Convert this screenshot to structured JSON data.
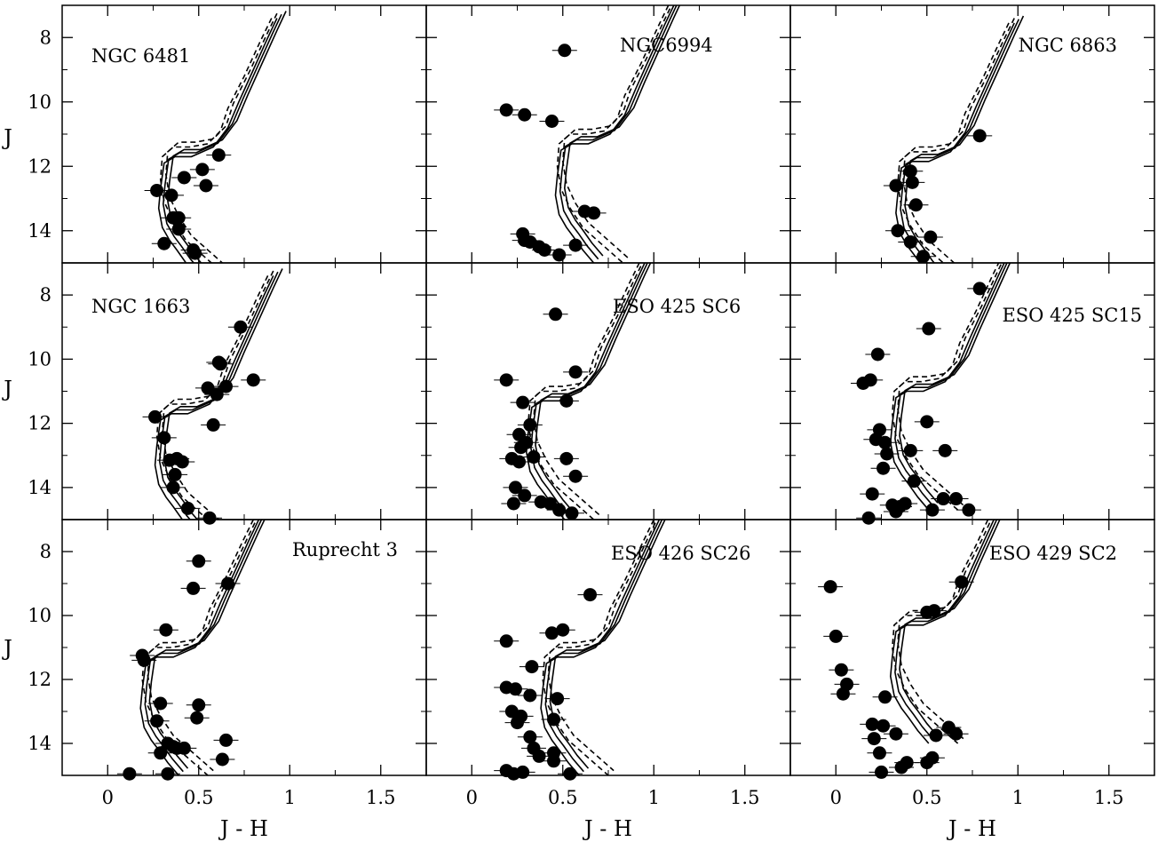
{
  "figure": {
    "axis_labels": {
      "x": "J - H",
      "y": "J"
    }
  },
  "chart_data": [
    {
      "type": "scatter",
      "title": "NGC 6481",
      "xlabel": "J - H",
      "ylabel": "J",
      "xlim": [
        -0.25,
        1.75
      ],
      "ylim": [
        15.0,
        7.0
      ],
      "x_ticks": [
        0,
        0.5,
        1,
        1.5
      ],
      "y_ticks": [
        8,
        10,
        12,
        14
      ],
      "series": [
        {
          "points": [
            [
              0.27,
              12.75
            ],
            [
              0.35,
              12.9
            ],
            [
              0.42,
              12.35
            ],
            [
              0.52,
              12.1
            ],
            [
              0.54,
              12.6
            ],
            [
              0.61,
              11.65
            ],
            [
              0.36,
              13.6
            ],
            [
              0.39,
              13.6
            ],
            [
              0.39,
              13.95
            ],
            [
              0.31,
              14.4
            ],
            [
              0.47,
              14.6
            ],
            [
              0.48,
              14.7
            ]
          ]
        }
      ]
    },
    {
      "type": "scatter",
      "title": "NGC6994",
      "xlabel": "J - H",
      "ylabel": "J",
      "xlim": [
        -0.25,
        1.75
      ],
      "ylim": [
        15.0,
        7.0
      ],
      "x_ticks": [
        0,
        0.5,
        1,
        1.5
      ],
      "y_ticks": [
        8,
        10,
        12,
        14
      ],
      "series": [
        {
          "points": [
            [
              0.51,
              8.4
            ],
            [
              0.19,
              10.25
            ],
            [
              0.29,
              10.4
            ],
            [
              0.44,
              10.6
            ],
            [
              0.62,
              13.4
            ],
            [
              0.67,
              13.45
            ],
            [
              0.28,
              14.1
            ],
            [
              0.29,
              14.3
            ],
            [
              0.32,
              14.35
            ],
            [
              0.37,
              14.5
            ],
            [
              0.4,
              14.6
            ],
            [
              0.48,
              14.75
            ],
            [
              0.57,
              14.45
            ]
          ]
        }
      ]
    },
    {
      "type": "scatter",
      "title": "NGC 6863",
      "xlabel": "J - H",
      "ylabel": "J",
      "xlim": [
        -0.25,
        1.75
      ],
      "ylim": [
        15.0,
        7.0
      ],
      "x_ticks": [
        0,
        0.5,
        1,
        1.5
      ],
      "y_ticks": [
        8,
        10,
        12,
        14
      ],
      "series": [
        {
          "points": [
            [
              0.79,
              11.05
            ],
            [
              0.41,
              12.15
            ],
            [
              0.42,
              12.5
            ],
            [
              0.33,
              12.6
            ],
            [
              0.44,
              13.2
            ],
            [
              0.34,
              14.0
            ],
            [
              0.41,
              14.35
            ],
            [
              0.52,
              14.2
            ],
            [
              0.48,
              14.8
            ]
          ]
        }
      ]
    },
    {
      "type": "scatter",
      "title": "NGC 1663",
      "xlabel": "J - H",
      "ylabel": "J",
      "xlim": [
        -0.25,
        1.75
      ],
      "ylim": [
        15.0,
        7.0
      ],
      "x_ticks": [
        0,
        0.5,
        1,
        1.5
      ],
      "y_ticks": [
        8,
        10,
        12,
        14
      ],
      "series": [
        {
          "points": [
            [
              0.73,
              9.0
            ],
            [
              0.61,
              10.1
            ],
            [
              0.62,
              10.15
            ],
            [
              0.55,
              10.9
            ],
            [
              0.6,
              11.1
            ],
            [
              0.65,
              10.85
            ],
            [
              0.8,
              10.65
            ],
            [
              0.26,
              11.8
            ],
            [
              0.58,
              12.05
            ],
            [
              0.31,
              12.45
            ],
            [
              0.34,
              13.15
            ],
            [
              0.38,
              13.1
            ],
            [
              0.41,
              13.2
            ],
            [
              0.37,
              13.6
            ],
            [
              0.36,
              14.0
            ],
            [
              0.44,
              14.65
            ],
            [
              0.56,
              14.95
            ]
          ]
        }
      ]
    },
    {
      "type": "scatter",
      "title": "ESO 425 SC6",
      "xlabel": "J - H",
      "ylabel": "J",
      "xlim": [
        -0.25,
        1.75
      ],
      "ylim": [
        15.0,
        7.0
      ],
      "x_ticks": [
        0,
        0.5,
        1,
        1.5
      ],
      "y_ticks": [
        8,
        10,
        12,
        14
      ],
      "series": [
        {
          "points": [
            [
              0.46,
              8.6
            ],
            [
              0.57,
              10.4
            ],
            [
              0.19,
              10.65
            ],
            [
              0.28,
              11.35
            ],
            [
              0.52,
              11.3
            ],
            [
              0.32,
              12.05
            ],
            [
              0.26,
              12.35
            ],
            [
              0.27,
              12.75
            ],
            [
              0.3,
              12.6
            ],
            [
              0.22,
              13.1
            ],
            [
              0.26,
              13.2
            ],
            [
              0.34,
              13.05
            ],
            [
              0.52,
              13.1
            ],
            [
              0.57,
              13.65
            ],
            [
              0.24,
              14.0
            ],
            [
              0.29,
              14.25
            ],
            [
              0.38,
              14.45
            ],
            [
              0.43,
              14.5
            ],
            [
              0.48,
              14.7
            ],
            [
              0.55,
              14.8
            ],
            [
              0.23,
              14.5
            ]
          ]
        }
      ]
    },
    {
      "type": "scatter",
      "title": "ESO 425 SC15",
      "xlabel": "J - H",
      "ylabel": "J",
      "xlim": [
        -0.25,
        1.75
      ],
      "ylim": [
        15.0,
        7.0
      ],
      "x_ticks": [
        0,
        0.5,
        1,
        1.5
      ],
      "y_ticks": [
        8,
        10,
        12,
        14
      ],
      "series": [
        {
          "points": [
            [
              0.79,
              7.8
            ],
            [
              0.51,
              9.05
            ],
            [
              0.23,
              9.85
            ],
            [
              0.15,
              10.75
            ],
            [
              0.19,
              10.65
            ],
            [
              0.24,
              12.2
            ],
            [
              0.22,
              12.5
            ],
            [
              0.27,
              12.6
            ],
            [
              0.28,
              12.95
            ],
            [
              0.26,
              13.4
            ],
            [
              0.41,
              12.85
            ],
            [
              0.5,
              11.95
            ],
            [
              0.6,
              12.85
            ],
            [
              0.43,
              13.8
            ],
            [
              0.2,
              14.2
            ],
            [
              0.31,
              14.55
            ],
            [
              0.35,
              14.6
            ],
            [
              0.38,
              14.5
            ],
            [
              0.33,
              14.75
            ],
            [
              0.53,
              14.7
            ],
            [
              0.59,
              14.35
            ],
            [
              0.66,
              14.35
            ],
            [
              0.73,
              14.7
            ],
            [
              0.18,
              14.95
            ]
          ]
        }
      ]
    },
    {
      "type": "scatter",
      "title": "Ruprecht 3",
      "xlabel": "J - H",
      "ylabel": "J",
      "xlim": [
        -0.25,
        1.75
      ],
      "ylim": [
        15.0,
        7.0
      ],
      "x_ticks": [
        0,
        0.5,
        1,
        1.5
      ],
      "y_ticks": [
        8,
        10,
        12,
        14
      ],
      "series": [
        {
          "points": [
            [
              0.5,
              8.3
            ],
            [
              0.47,
              9.15
            ],
            [
              0.66,
              9.0
            ],
            [
              0.32,
              10.45
            ],
            [
              0.19,
              11.25
            ],
            [
              0.2,
              11.4
            ],
            [
              0.29,
              12.75
            ],
            [
              0.27,
              13.3
            ],
            [
              0.5,
              12.8
            ],
            [
              0.49,
              13.2
            ],
            [
              0.33,
              14.0
            ],
            [
              0.36,
              14.1
            ],
            [
              0.38,
              14.15
            ],
            [
              0.42,
              14.15
            ],
            [
              0.29,
              14.3
            ],
            [
              0.65,
              13.9
            ],
            [
              0.63,
              14.5
            ],
            [
              0.12,
              14.95
            ],
            [
              0.33,
              14.95
            ]
          ]
        }
      ]
    },
    {
      "type": "scatter",
      "title": "ESO 426 SC26",
      "xlabel": "J - H",
      "ylabel": "J",
      "xlim": [
        -0.25,
        1.75
      ],
      "ylim": [
        15.0,
        7.0
      ],
      "x_ticks": [
        0,
        0.5,
        1,
        1.5
      ],
      "y_ticks": [
        8,
        10,
        12,
        14
      ],
      "series": [
        {
          "points": [
            [
              0.65,
              9.35
            ],
            [
              0.5,
              10.45
            ],
            [
              0.44,
              10.55
            ],
            [
              0.19,
              10.8
            ],
            [
              0.33,
              11.6
            ],
            [
              0.19,
              12.25
            ],
            [
              0.24,
              12.3
            ],
            [
              0.32,
              12.5
            ],
            [
              0.47,
              12.6
            ],
            [
              0.22,
              13.0
            ],
            [
              0.27,
              13.15
            ],
            [
              0.25,
              13.35
            ],
            [
              0.45,
              13.25
            ],
            [
              0.32,
              13.8
            ],
            [
              0.34,
              14.15
            ],
            [
              0.37,
              14.4
            ],
            [
              0.45,
              14.3
            ],
            [
              0.45,
              14.55
            ],
            [
              0.19,
              14.85
            ],
            [
              0.23,
              14.95
            ],
            [
              0.28,
              14.9
            ],
            [
              0.54,
              14.95
            ]
          ]
        }
      ]
    },
    {
      "type": "scatter",
      "title": "ESO 429 SC2",
      "xlabel": "J - H",
      "ylabel": "J",
      "xlim": [
        -0.25,
        1.75
      ],
      "ylim": [
        15.0,
        7.0
      ],
      "x_ticks": [
        0,
        0.5,
        1,
        1.5
      ],
      "y_ticks": [
        8,
        10,
        12,
        14
      ],
      "series": [
        {
          "points": [
            [
              0.69,
              8.95
            ],
            [
              -0.03,
              9.1
            ],
            [
              0.5,
              9.9
            ],
            [
              0.54,
              9.85
            ],
            [
              0.0,
              10.65
            ],
            [
              0.03,
              11.7
            ],
            [
              0.06,
              12.15
            ],
            [
              0.04,
              12.45
            ],
            [
              0.27,
              12.55
            ],
            [
              0.2,
              13.4
            ],
            [
              0.26,
              13.45
            ],
            [
              0.33,
              13.7
            ],
            [
              0.21,
              13.85
            ],
            [
              0.24,
              14.3
            ],
            [
              0.55,
              13.75
            ],
            [
              0.62,
              13.5
            ],
            [
              0.66,
              13.7
            ],
            [
              0.36,
              14.75
            ],
            [
              0.39,
              14.6
            ],
            [
              0.5,
              14.6
            ],
            [
              0.53,
              14.45
            ],
            [
              0.25,
              14.9
            ]
          ]
        }
      ]
    }
  ]
}
